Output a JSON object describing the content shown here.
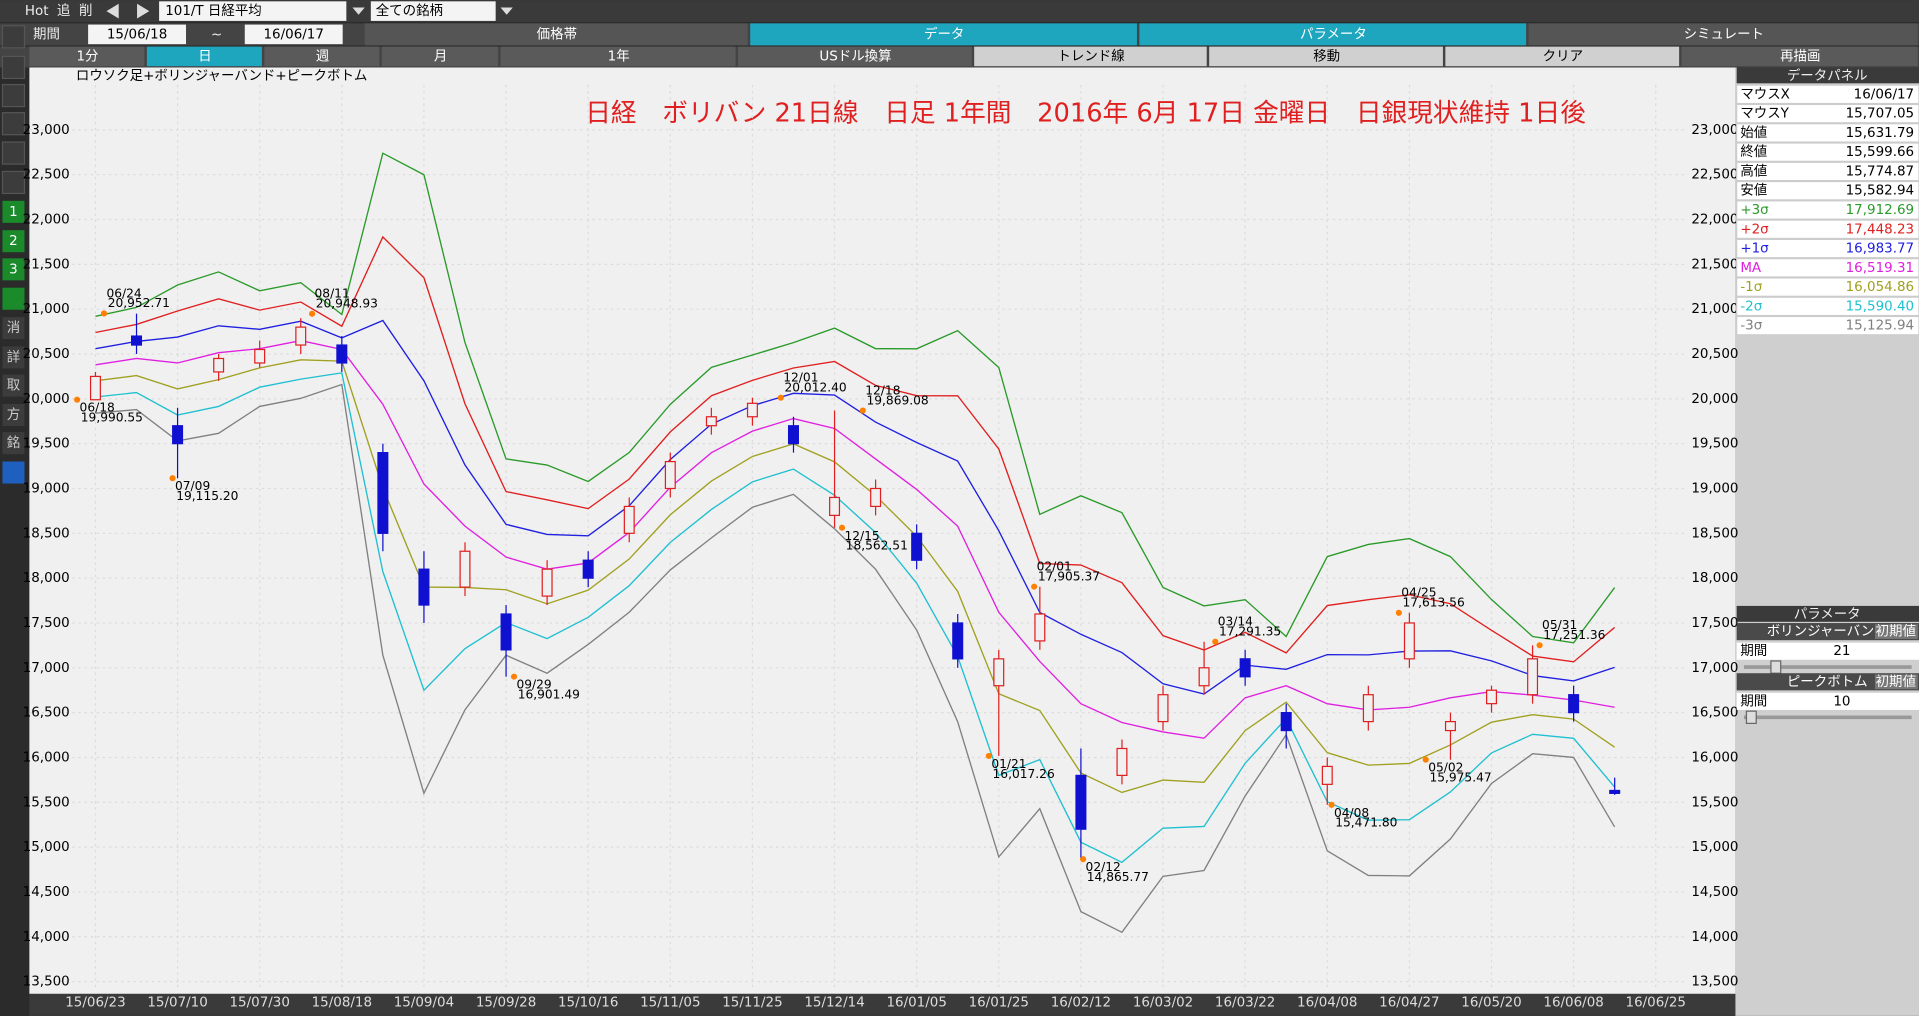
{
  "toolbar": {
    "items": [
      "Hot",
      "追",
      "削"
    ],
    "symbol": "101/T 日経平均",
    "universe": "全ての銘柄",
    "period_label": "期間",
    "from": "15/06/18",
    "tilde": "~",
    "to": "16/06/17",
    "tabs": [
      "価格帯",
      "データ",
      "パラメータ",
      "シミュレート"
    ],
    "buttons": [
      "1分",
      "日",
      "週",
      "月",
      "1年",
      "USドル換算",
      "トレンド線",
      "移動",
      "クリア",
      "再描画"
    ]
  },
  "sidebar": [
    "1",
    "2",
    "3",
    "消",
    "詳",
    "取",
    "方",
    "銘"
  ],
  "chart_data": {
    "type": "candlestick",
    "title": "日経　ボリバン 21日線　日足 1年間　2016年 6月 17日 金曜日　日銀現状維持 1日後",
    "subtitle": "ロウソク足+ボリンジャーバンド+ピークボトム",
    "categories": [
      "15/06/23",
      null,
      "15/07/10",
      null,
      "15/07/30",
      null,
      "15/08/18",
      null,
      "15/09/04",
      null,
      "15/09/28",
      null,
      "15/10/16",
      null,
      "15/11/05",
      null,
      "15/11/25",
      null,
      "15/12/14",
      null,
      "16/01/05",
      null,
      "16/01/25",
      null,
      "16/02/12",
      null,
      "16/03/02",
      null,
      "16/03/22",
      null,
      "16/04/08",
      null,
      "16/04/27",
      null,
      "16/05/20",
      null,
      "16/06/08",
      null,
      "16/06/25"
    ],
    "candles": {
      "open": [
        19990,
        20700,
        19700,
        20300,
        20400,
        20600,
        20600,
        19400,
        18100,
        17900,
        17600,
        17800,
        18200,
        18500,
        19000,
        19700,
        19800,
        19700,
        18700,
        18800,
        18500,
        17500,
        16800,
        17300,
        15800,
        15800,
        16400,
        16800,
        17100,
        16500,
        15700,
        16400,
        17100,
        16300,
        16600,
        16700,
        16700,
        15631.79,
        null
      ],
      "high": [
        20300,
        20950,
        19900,
        20500,
        20650,
        20900,
        20700,
        19500,
        18300,
        18400,
        17700,
        18200,
        18300,
        18900,
        19400,
        19900,
        20012,
        19800,
        19869,
        19100,
        18600,
        17600,
        17200,
        17905,
        16100,
        16200,
        16800,
        17291,
        17200,
        16600,
        16000,
        16800,
        17613,
        16500,
        16800,
        17251,
        16800,
        15774.87,
        null
      ],
      "low": [
        19990,
        20500,
        19115,
        20200,
        20350,
        20500,
        20300,
        18300,
        17500,
        17800,
        16901,
        17700,
        17900,
        18400,
        18900,
        19600,
        19700,
        19400,
        18562,
        18700,
        18100,
        17000,
        16017,
        17200,
        14865,
        15700,
        16300,
        16700,
        16800,
        16100,
        15471,
        16300,
        17000,
        15975,
        16500,
        16600,
        16400,
        15582.94,
        null
      ],
      "close": [
        20250,
        20600,
        19500,
        20450,
        20550,
        20800,
        20400,
        18500,
        17700,
        18300,
        17200,
        18100,
        18000,
        18800,
        19300,
        19800,
        19950,
        19500,
        18900,
        19000,
        18200,
        17100,
        17100,
        17600,
        15200,
        16100,
        16700,
        17000,
        16900,
        16300,
        15900,
        16700,
        17500,
        16400,
        16750,
        17100,
        16500,
        15599.66,
        null
      ]
    },
    "series": [
      {
        "name": "+3σ",
        "color": "#2a9a2a",
        "values": [
          20920,
          21020,
          21270,
          21415,
          21205,
          21295,
          20940,
          22739,
          22500,
          20629,
          19330,
          19261,
          19079,
          19401,
          19939,
          20351,
          20489,
          20626,
          20789,
          20560,
          20559,
          20761,
          20350,
          18711,
          18919,
          18730,
          17896,
          17691,
          17760,
          17349,
          18241,
          18375,
          18441,
          18240,
          17761,
          17349,
          17279,
          17895,
          null
        ]
      },
      {
        "name": "+2σ",
        "color": "#e02020",
        "values": [
          20740,
          20830,
          20980,
          21115,
          20990,
          21080,
          20810,
          21806,
          21350,
          19946,
          18965,
          18874,
          18776,
          19104,
          19631,
          20034,
          20206,
          20344,
          20416,
          20150,
          20036,
          20034,
          19440,
          18164,
          18146,
          17950,
          17359,
          17199,
          17395,
          17166,
          17694,
          17760,
          17814,
          17715,
          17419,
          17131,
          17066,
          17450,
          null
        ]
      },
      {
        "name": "+1σ",
        "color": "#2020e0",
        "values": [
          20560,
          20640,
          20690,
          20815,
          20775,
          20865,
          20680,
          20873,
          20200,
          19263,
          18600,
          18487,
          18473,
          18807,
          19323,
          19717,
          19923,
          20062,
          20043,
          19740,
          19513,
          19307,
          18530,
          17617,
          17373,
          17170,
          16822,
          16707,
          17030,
          16983,
          17147,
          17145,
          17187,
          17190,
          17077,
          16913,
          16853,
          17005,
          null
        ]
      },
      {
        "name": "MA",
        "color": "#e020e0",
        "values": [
          20380,
          20450,
          20400,
          20515,
          20560,
          20650,
          20550,
          19940,
          19050,
          18580,
          18235,
          18100,
          18170,
          18510,
          19015,
          19400,
          19640,
          19780,
          19670,
          19330,
          18990,
          18580,
          17620,
          17070,
          16600,
          16390,
          16285,
          16215,
          16665,
          16800,
          16600,
          16530,
          16560,
          16665,
          16735,
          16695,
          16640,
          16560,
          null
        ]
      },
      {
        "name": "-1σ",
        "color": "#a0a020",
        "values": [
          20200,
          20260,
          20110,
          20215,
          20345,
          20435,
          20420,
          19007,
          17900,
          17897,
          17870,
          17713,
          17867,
          18213,
          18707,
          19083,
          19357,
          19498,
          19297,
          18920,
          18467,
          17853,
          16710,
          16523,
          15827,
          15610,
          15748,
          15723,
          16300,
          16617,
          16053,
          15915,
          15933,
          16140,
          16393,
          16477,
          16427,
          16115,
          null
        ]
      },
      {
        "name": "-2σ",
        "color": "#20c0d0",
        "values": [
          20020,
          20070,
          19820,
          19915,
          20130,
          20220,
          20290,
          18074,
          16750,
          17214,
          17505,
          17326,
          17564,
          17916,
          18399,
          18766,
          19074,
          19216,
          18924,
          18510,
          17944,
          17126,
          15800,
          15976,
          15054,
          14830,
          15211,
          15231,
          15935,
          16434,
          15506,
          15300,
          15306,
          15615,
          16051,
          16259,
          16214,
          15670,
          null
        ]
      },
      {
        "name": "-3σ",
        "color": "#808080",
        "values": [
          19840,
          19880,
          19530,
          19615,
          19915,
          20005,
          20160,
          17141,
          15600,
          16531,
          17140,
          16939,
          17261,
          17619,
          18091,
          18449,
          18791,
          18934,
          18551,
          18100,
          17421,
          16399,
          14890,
          15429,
          14281,
          14050,
          14674,
          14739,
          15570,
          16251,
          14959,
          14685,
          14679,
          15090,
          15709,
          16041,
          16001,
          15225,
          null
        ]
      }
    ],
    "annotations": [
      {
        "date": "06/18",
        "value": 19990.55,
        "value_label": "19,990.55"
      },
      {
        "date": "06/24",
        "value": 20952.71,
        "value_label": "20,952.71"
      },
      {
        "date": "07/09",
        "value": 19115.2,
        "value_label": "19,115.20"
      },
      {
        "date": "08/11",
        "value": 20948.93,
        "value_label": "20,948.93"
      },
      {
        "date": "09/29",
        "value": 16901.49,
        "value_label": "16,901.49"
      },
      {
        "date": "12/01",
        "value": 20012.4,
        "value_label": "20,012.40"
      },
      {
        "date": "12/18",
        "value": 19869.08,
        "value_label": "19,869.08"
      },
      {
        "date": "12/15",
        "value": 18562.51,
        "value_label": "18,562.51"
      },
      {
        "date": "02/01",
        "value": 17905.37,
        "value_label": "17,905.37"
      },
      {
        "date": "01/21",
        "value": 16017.26,
        "value_label": "16,017.26"
      },
      {
        "date": "02/12",
        "value": 14865.77,
        "value_label": "14,865.77"
      },
      {
        "date": "03/14",
        "value": 17291.35,
        "value_label": "17,291.35"
      },
      {
        "date": "04/08",
        "value": 15471.8,
        "value_label": "15,471.80"
      },
      {
        "date": "04/25",
        "value": 17613.56,
        "value_label": "17,613.56"
      },
      {
        "date": "05/02",
        "value": 15975.47,
        "value_label": "15,975.47"
      },
      {
        "date": "05/31",
        "value": 17251.36,
        "value_label": "17,251.36"
      }
    ],
    "ylim": [
      13400,
      23500
    ],
    "yticks": [
      {
        "value": 13500,
        "label": "13,500"
      },
      {
        "value": 14000,
        "label": "14,000"
      },
      {
        "value": 14500,
        "label": "14,500"
      },
      {
        "value": 15000,
        "label": "15,000"
      },
      {
        "value": 15500,
        "label": "15,500"
      },
      {
        "value": 16000,
        "label": "16,000"
      },
      {
        "value": 16500,
        "label": "16,500"
      },
      {
        "value": 17000,
        "label": "17,000"
      },
      {
        "value": 17500,
        "label": "17,500"
      },
      {
        "value": 18000,
        "label": "18,000"
      },
      {
        "value": 18500,
        "label": "18,500"
      },
      {
        "value": 19000,
        "label": "19,000"
      },
      {
        "value": 19500,
        "label": "19,500"
      },
      {
        "value": 20000,
        "label": "20,000"
      },
      {
        "value": 20500,
        "label": "20,500"
      },
      {
        "value": 21000,
        "label": "21,000"
      },
      {
        "value": 21500,
        "label": "21,500"
      },
      {
        "value": 22000,
        "label": "22,000"
      },
      {
        "value": 22500,
        "label": "22,500"
      },
      {
        "value": 23000,
        "label": "23,000"
      }
    ],
    "grid": true,
    "up_color": "#e02020",
    "down_color": "#1010d0",
    "annotation_color": "#ff8000",
    "title_color": "#e02020"
  },
  "data_panel": {
    "title": "データパネル",
    "rows": [
      [
        "マウスX",
        "16/06/17"
      ],
      [
        "マウスY",
        "15,707.05"
      ],
      [
        "始値",
        "15,631.79"
      ],
      [
        "終値",
        "15,599.66"
      ],
      [
        "高値",
        "15,774.87"
      ],
      [
        "安値",
        "15,582.94"
      ],
      [
        "+3σ",
        "17,912.69"
      ],
      [
        "+2σ",
        "17,448.23"
      ],
      [
        "+1σ",
        "16,983.77"
      ],
      [
        "MA",
        "16,519.31"
      ],
      [
        "-1σ",
        "16,054.86"
      ],
      [
        "-2σ",
        "15,590.40"
      ],
      [
        "-3σ",
        "15,125.94"
      ]
    ]
  },
  "parameters": {
    "title": "パラメータ",
    "sections": [
      {
        "name": "ボリンジャーバンド",
        "reset": "初期値",
        "label": "期間",
        "value": 21
      },
      {
        "name": "ピークボトム",
        "reset": "初期値",
        "label": "期間",
        "value": 10
      }
    ]
  }
}
